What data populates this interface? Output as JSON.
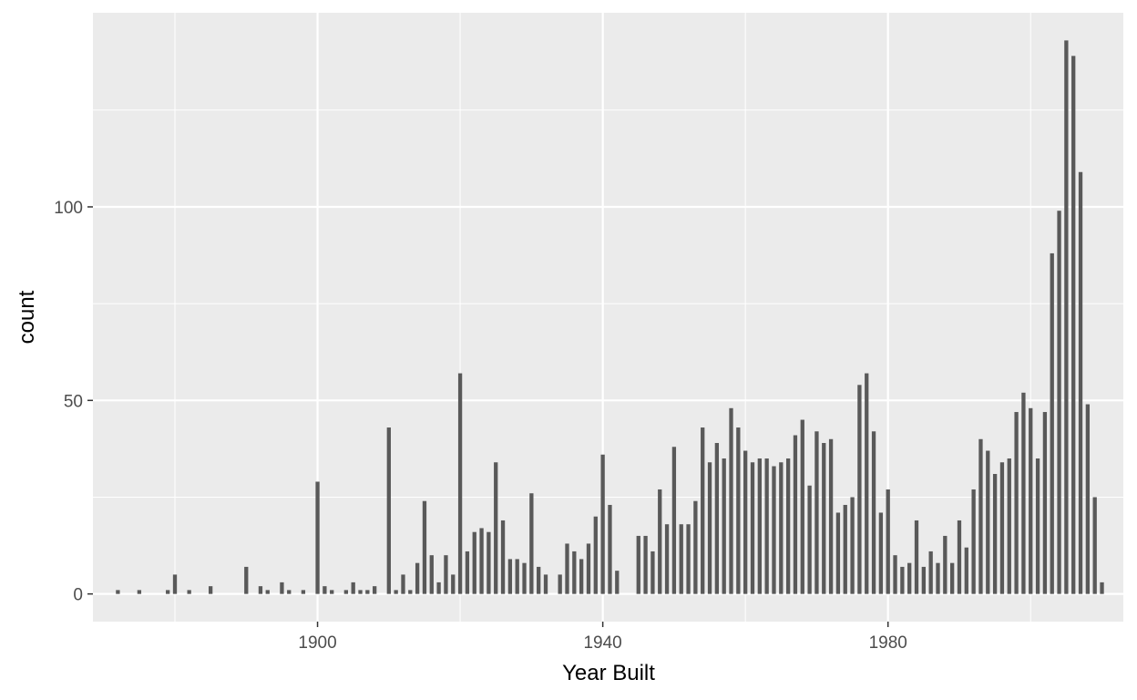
{
  "chart_data": {
    "type": "bar",
    "title": "",
    "xlabel": "Year Built",
    "ylabel": "count",
    "xlim": [
      1868.5,
      2013
    ],
    "ylim": [
      -7.15,
      150.15
    ],
    "x_ticks": [
      1900,
      1940,
      1980
    ],
    "y_ticks": [
      0,
      50,
      100
    ],
    "grid": true,
    "legend": "none",
    "colors": {
      "panel": "#ebebeb",
      "grid_major": "#ffffff",
      "bar": "#595959",
      "tick_text": "#4d4d4d",
      "axis_text": "#000000"
    },
    "x": [
      1872,
      1875,
      1879,
      1880,
      1882,
      1885,
      1890,
      1892,
      1893,
      1895,
      1896,
      1898,
      1900,
      1901,
      1902,
      1904,
      1905,
      1906,
      1907,
      1908,
      1910,
      1911,
      1912,
      1913,
      1914,
      1915,
      1916,
      1917,
      1918,
      1919,
      1920,
      1921,
      1922,
      1923,
      1924,
      1925,
      1926,
      1927,
      1928,
      1929,
      1930,
      1931,
      1932,
      1934,
      1935,
      1936,
      1937,
      1938,
      1939,
      1940,
      1941,
      1942,
      1945,
      1946,
      1947,
      1948,
      1949,
      1950,
      1951,
      1952,
      1953,
      1954,
      1955,
      1956,
      1957,
      1958,
      1959,
      1960,
      1961,
      1962,
      1963,
      1964,
      1965,
      1966,
      1967,
      1968,
      1969,
      1970,
      1971,
      1972,
      1973,
      1974,
      1975,
      1976,
      1977,
      1978,
      1979,
      1980,
      1981,
      1982,
      1983,
      1984,
      1985,
      1986,
      1987,
      1988,
      1989,
      1990,
      1991,
      1992,
      1993,
      1994,
      1995,
      1996,
      1997,
      1998,
      1999,
      2000,
      2001,
      2002,
      2003,
      2004,
      2005,
      2006,
      2007,
      2008,
      2009,
      2010
    ],
    "values": [
      1,
      1,
      1,
      5,
      1,
      2,
      7,
      2,
      1,
      3,
      1,
      1,
      29,
      2,
      1,
      1,
      3,
      1,
      1,
      2,
      43,
      1,
      5,
      1,
      8,
      24,
      10,
      3,
      10,
      5,
      57,
      11,
      16,
      17,
      16,
      34,
      19,
      9,
      9,
      8,
      26,
      7,
      5,
      5,
      13,
      11,
      9,
      13,
      20,
      36,
      23,
      6,
      15,
      15,
      11,
      27,
      18,
      38,
      18,
      18,
      24,
      43,
      34,
      39,
      35,
      48,
      43,
      37,
      34,
      35,
      35,
      33,
      34,
      35,
      41,
      45,
      28,
      42,
      39,
      40,
      21,
      23,
      25,
      54,
      57,
      42,
      21,
      27,
      10,
      7,
      8,
      19,
      7,
      11,
      8,
      15,
      8,
      19,
      12,
      27,
      40,
      37,
      31,
      34,
      35,
      47,
      52,
      48,
      35,
      47,
      88,
      99,
      143,
      139,
      109,
      49,
      25,
      3
    ]
  }
}
